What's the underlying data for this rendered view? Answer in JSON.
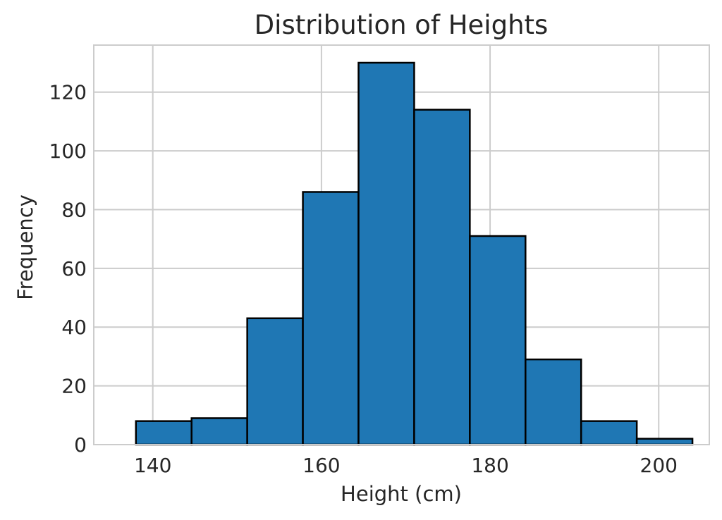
{
  "chart_data": {
    "type": "bar",
    "title": "Distribution of Heights",
    "xlabel": "Height (cm)",
    "ylabel": "Frequency",
    "bin_edges": [
      138.0,
      144.6,
      151.2,
      157.8,
      164.4,
      171.0,
      177.6,
      184.2,
      190.8,
      197.4,
      204.0
    ],
    "values": [
      8,
      9,
      43,
      86,
      130,
      114,
      71,
      29,
      8,
      2
    ],
    "xlim": [
      133,
      206
    ],
    "ylim": [
      0,
      136
    ],
    "xticks": [
      140,
      160,
      180,
      200
    ],
    "yticks": [
      0,
      20,
      40,
      60,
      80,
      100,
      120
    ],
    "grid": true,
    "colors": {
      "bar_fill": "#1f77b4",
      "bar_edge": "#000000",
      "grid": "#cccccc"
    }
  }
}
